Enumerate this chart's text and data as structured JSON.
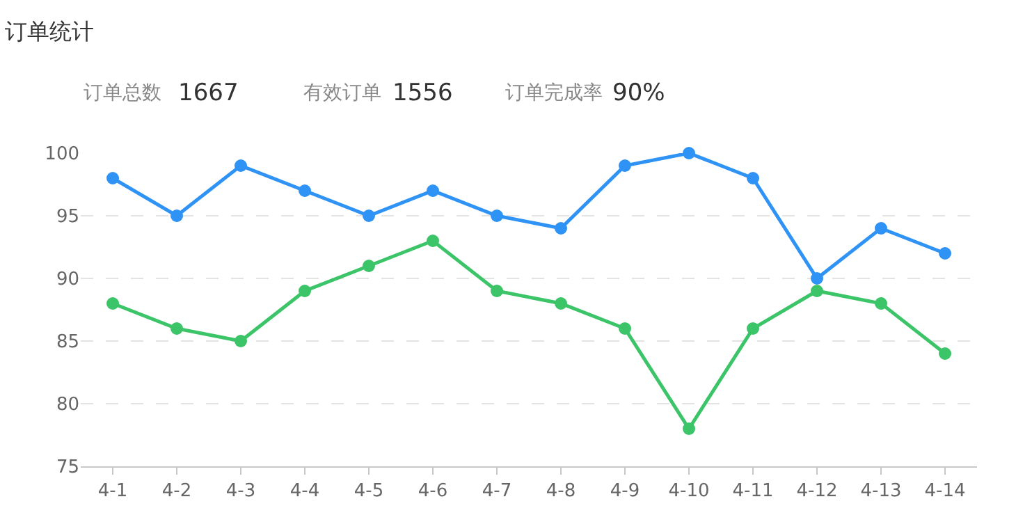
{
  "chart_data": {
    "type": "line",
    "title": "订单统计",
    "annotations": [
      "订单总数",
      "1667",
      "有效订单",
      "1556",
      "订单完成率",
      "90%"
    ],
    "categories": [
      "4-1",
      "4-2",
      "4-3",
      "4-4",
      "4-5",
      "4-6",
      "4-7",
      "4-8",
      "4-9",
      "4-10",
      "4-11",
      "4-12",
      "4-13",
      "4-14"
    ],
    "series": [
      {
        "color": "#2f93f5",
        "values": [
          98,
          95,
          99,
          97,
          95,
          97,
          95,
          94,
          99,
          100,
          98,
          90,
          94,
          92
        ]
      },
      {
        "color": "#3cc468",
        "values": [
          88,
          86,
          85,
          89,
          91,
          93,
          89,
          88,
          86,
          78,
          86,
          89,
          88,
          84
        ]
      }
    ],
    "ylim": [
      75,
      100
    ],
    "yticks": [
      75,
      80,
      85,
      90,
      95,
      100
    ],
    "grid": "y",
    "marker": "circle",
    "line_style": "solid",
    "legend": false
  }
}
